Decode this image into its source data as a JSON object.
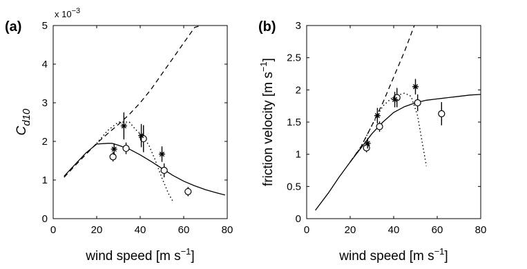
{
  "chart_data": [
    {
      "type": "line",
      "panel_label": "(a)",
      "xlabel": "wind speed  [m s",
      "xlabel_sup": "−1",
      "xlabel_end": "]",
      "ylabel": "C",
      "ylabel_sub": "d10",
      "y_multiplier_base": "x 10",
      "y_multiplier_exp": "−3",
      "xlim": [
        0,
        80
      ],
      "ylim": [
        0,
        5
      ],
      "xticks": [
        0,
        20,
        40,
        60,
        80
      ],
      "yticks": [
        0,
        1,
        2,
        3,
        4,
        5
      ],
      "grid": false,
      "series": [
        {
          "style": "solid",
          "x": [
            5,
            10,
            15,
            20,
            25,
            27,
            30,
            35,
            40,
            45,
            50,
            55,
            60,
            65,
            70,
            75,
            79
          ],
          "y": [
            1.1,
            1.4,
            1.7,
            1.93,
            1.95,
            1.95,
            1.9,
            1.8,
            1.65,
            1.48,
            1.3,
            1.12,
            0.97,
            0.85,
            0.75,
            0.67,
            0.61
          ]
        },
        {
          "style": "dashed",
          "x": [
            5,
            10,
            15,
            20,
            25,
            30,
            35,
            40,
            45,
            50,
            55,
            60,
            65,
            68
          ],
          "y": [
            1.07,
            1.37,
            1.66,
            1.95,
            2.2,
            2.44,
            2.7,
            3.0,
            3.35,
            3.75,
            4.15,
            4.55,
            4.95,
            5.0
          ]
        },
        {
          "style": "dotted",
          "x": [
            20,
            25,
            30,
            35,
            38,
            41,
            44,
            47,
            50,
            53,
            55
          ],
          "y": [
            1.95,
            2.28,
            2.5,
            2.5,
            2.3,
            2.15,
            1.9,
            1.5,
            1.05,
            0.65,
            0.45
          ]
        },
        {
          "style": "circles",
          "x": [
            27.5,
            33.5,
            41.5,
            51,
            62
          ],
          "y": [
            1.6,
            1.82,
            2.07,
            1.25,
            0.7
          ],
          "err": [
            0.12,
            0.15,
            0.35,
            0.18,
            0.12
          ]
        },
        {
          "style": "stars",
          "x": [
            28,
            32.5,
            40.5,
            50
          ],
          "y": [
            1.8,
            2.4,
            2.15,
            1.67
          ],
          "err": [
            0.15,
            0.35,
            0.3,
            0.2
          ]
        }
      ]
    },
    {
      "type": "line",
      "panel_label": "(b)",
      "xlabel": "wind speed  [m s",
      "xlabel_sup": "−1",
      "xlabel_end": "]",
      "ylabel": "friction velocity  [m s",
      "ylabel_sup": "−1",
      "ylabel_end": "]",
      "xlim": [
        0,
        80
      ],
      "ylim": [
        0,
        3
      ],
      "xticks": [
        0,
        20,
        40,
        60,
        80
      ],
      "yticks": [
        0,
        0.5,
        1,
        1.5,
        2,
        2.5,
        3
      ],
      "ytick_labels": [
        "0",
        "0.5",
        "1",
        "1.5",
        "2",
        "2.5",
        "3"
      ],
      "grid": false,
      "series": [
        {
          "style": "solid",
          "x": [
            4,
            10,
            15,
            20,
            25,
            30,
            35,
            40,
            45,
            50,
            55,
            60,
            65,
            70,
            75,
            80
          ],
          "y": [
            0.13,
            0.4,
            0.65,
            0.88,
            1.1,
            1.32,
            1.5,
            1.65,
            1.74,
            1.8,
            1.84,
            1.86,
            1.88,
            1.9,
            1.92,
            1.93
          ]
        },
        {
          "style": "dashed",
          "x": [
            20,
            25,
            30,
            35,
            40,
            45,
            49.5
          ],
          "y": [
            0.88,
            1.12,
            1.45,
            1.8,
            2.2,
            2.6,
            3.0
          ]
        },
        {
          "style": "dotted",
          "x": [
            20,
            25,
            30,
            35,
            40,
            45,
            48,
            51,
            53,
            55
          ],
          "y": [
            0.88,
            1.12,
            1.45,
            1.75,
            1.9,
            1.95,
            1.9,
            1.6,
            1.2,
            0.82
          ]
        },
        {
          "style": "circles",
          "x": [
            27.5,
            33.5,
            41.5,
            51,
            62
          ],
          "y": [
            1.1,
            1.43,
            1.88,
            1.8,
            1.63
          ],
          "err": [
            0.07,
            0.08,
            0.15,
            0.13,
            0.18
          ]
        },
        {
          "style": "stars",
          "x": [
            28,
            32.5,
            40.5,
            50
          ],
          "y": [
            1.17,
            1.6,
            1.85,
            2.05
          ],
          "err": [
            0.08,
            0.12,
            0.12,
            0.12
          ]
        }
      ]
    }
  ]
}
